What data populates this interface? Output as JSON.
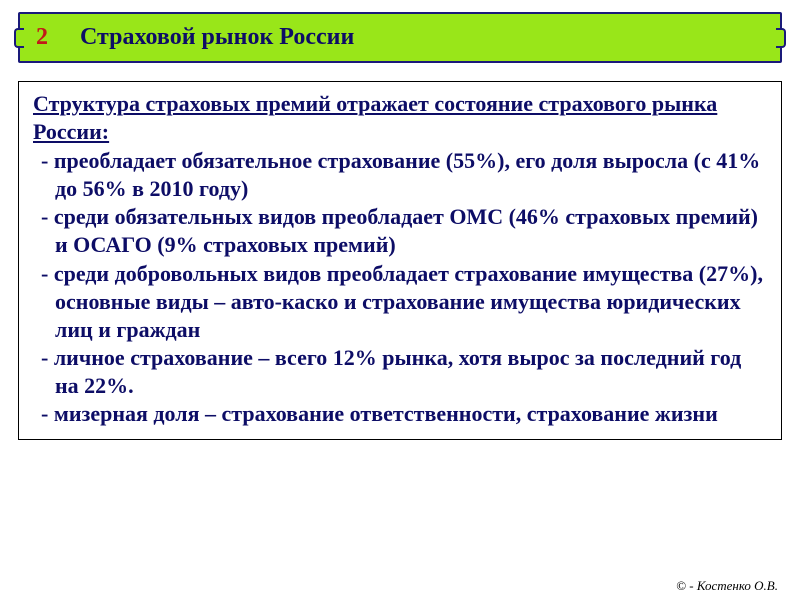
{
  "header": {
    "number": "2",
    "title": "Страховой рынок России",
    "bg_color": "#99e619",
    "border_color": "#1a1a7a",
    "number_color": "#c21919",
    "title_color": "#0d0d66"
  },
  "content": {
    "heading": "Структура страховых премий отражает состояние страхового рынка России:",
    "text_color": "#0d0d66",
    "bullets": [
      "преобладает обязательное страхование (55%), его доля выросла (с 41% до 56% в 2010 году)",
      "среди обязательных видов преобладает ОМС (46% страховых премий) и ОСАГО (9% страховых премий)",
      "среди добровольных видов преобладает страхование имущества (27%), основные виды – авто-каско и страхование имущества юридических лиц и граждан",
      "личное страхование – всего 12% рынка, хотя вырос за последний год на 22%.",
      "мизерная доля – страхование ответственности, страхование жизни"
    ]
  },
  "footer": {
    "copyright": "© - Костенко О.В."
  }
}
